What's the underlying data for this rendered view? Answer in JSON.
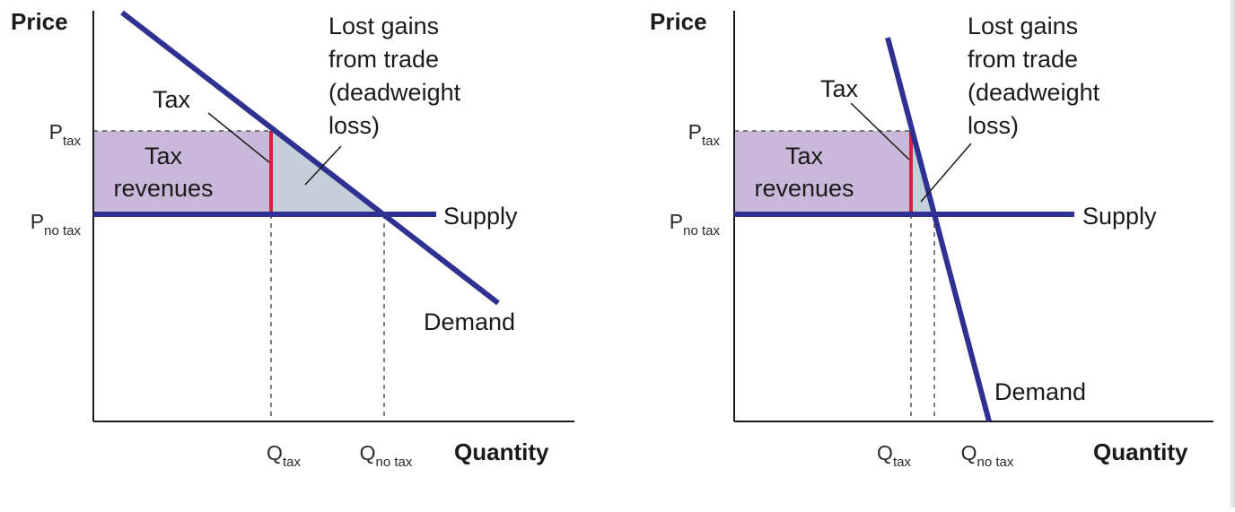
{
  "diagrams": [
    {
      "id": "elastic",
      "y_axis_label": "Price",
      "x_axis_label": "Quantity",
      "p_tax": {
        "main": "P",
        "sub": "tax"
      },
      "p_no_tax": {
        "main": "P",
        "sub": "no tax"
      },
      "q_tax": {
        "main": "Q",
        "sub": "tax"
      },
      "q_no_tax": {
        "main": "Q",
        "sub": "no tax"
      },
      "tax_label": "Tax",
      "tax_revenues_lines": [
        "Tax",
        "revenues"
      ],
      "deadweight_lines": [
        "Lost gains",
        "from trade",
        "(deadweight",
        "loss)"
      ],
      "supply_label": "Supply",
      "demand_label": "Demand"
    },
    {
      "id": "inelastic",
      "y_axis_label": "Price",
      "x_axis_label": "Quantity",
      "p_tax": {
        "main": "P",
        "sub": "tax"
      },
      "p_no_tax": {
        "main": "P",
        "sub": "no tax"
      },
      "q_tax": {
        "main": "Q",
        "sub": "tax"
      },
      "q_no_tax": {
        "main": "Q",
        "sub": "no tax"
      },
      "tax_label": "Tax",
      "tax_revenues_lines": [
        "Tax",
        "revenues"
      ],
      "deadweight_lines": [
        "Lost gains",
        "from trade",
        "(deadweight",
        "loss)"
      ],
      "supply_label": "Supply",
      "demand_label": "Demand"
    }
  ],
  "colors": {
    "curve": "#2e3192",
    "tax_bar": "#d4213d",
    "revenue_fill": "#c9b8da",
    "deadweight_fill": "#c3d0d9",
    "axis": "#1a1a1a",
    "dashed": "#555555"
  }
}
